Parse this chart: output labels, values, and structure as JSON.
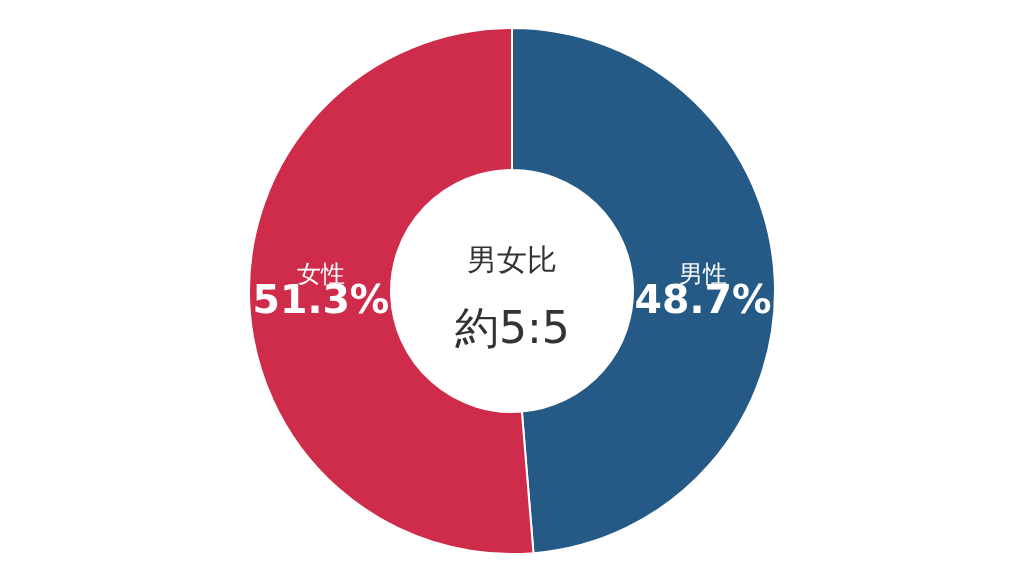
{
  "chart_data": {
    "type": "donut",
    "categories": [
      "男性",
      "女性"
    ],
    "values": [
      48.7,
      51.3
    ],
    "colors": [
      "#245a85",
      "#cf2b4a"
    ],
    "value_labels": [
      "48.7%",
      "51.3%"
    ],
    "annotations": [
      "男女比",
      "約5:5"
    ],
    "legend": false
  }
}
